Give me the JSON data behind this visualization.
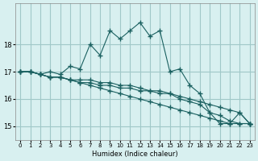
{
  "xlabel": "Humidex (Indice chaleur)",
  "background_color": "#d8f0f0",
  "grid_color": "#a0c8c8",
  "line_color": "#1a6060",
  "x_data": [
    0,
    1,
    2,
    3,
    4,
    5,
    6,
    7,
    8,
    9,
    10,
    11,
    12,
    13,
    14,
    15,
    16,
    17,
    18,
    19,
    20,
    21,
    22,
    23
  ],
  "series": [
    [
      17.0,
      17.0,
      16.9,
      17.0,
      16.9,
      17.2,
      17.1,
      18.0,
      17.6,
      18.5,
      18.2,
      18.5,
      18.8,
      18.3,
      18.5,
      17.0,
      17.1,
      16.5,
      16.2,
      15.5,
      15.1,
      15.1,
      15.5,
      15.1
    ],
    [
      17.0,
      17.0,
      16.9,
      16.8,
      16.8,
      16.7,
      16.7,
      16.7,
      16.6,
      16.6,
      16.5,
      16.5,
      16.4,
      16.3,
      16.3,
      16.2,
      16.1,
      16.0,
      15.9,
      15.8,
      15.7,
      15.6,
      15.5,
      15.1
    ],
    [
      17.0,
      17.0,
      16.9,
      16.8,
      16.8,
      16.7,
      16.6,
      16.6,
      16.5,
      16.5,
      16.4,
      16.4,
      16.3,
      16.3,
      16.2,
      16.2,
      16.0,
      15.9,
      15.8,
      15.5,
      15.4,
      15.2,
      15.1,
      15.1
    ],
    [
      17.0,
      17.0,
      16.9,
      16.8,
      16.8,
      16.7,
      16.6,
      16.5,
      16.4,
      16.3,
      16.2,
      16.1,
      16.0,
      15.9,
      15.8,
      15.7,
      15.6,
      15.5,
      15.4,
      15.3,
      15.2,
      15.1,
      15.1,
      15.1
    ]
  ],
  "ylim": [
    14.5,
    19.5
  ],
  "yticks": [
    15,
    16,
    17,
    18
  ],
  "xlim": [
    -0.5,
    23.5
  ]
}
